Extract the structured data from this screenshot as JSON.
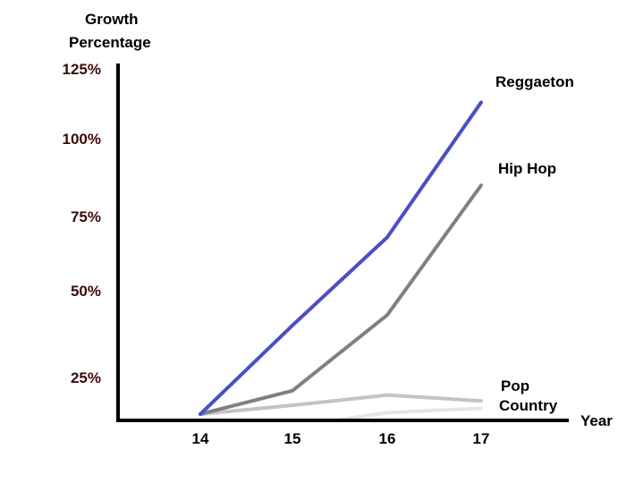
{
  "chart_data": {
    "type": "line",
    "ylabel_lines": [
      "Growth",
      "Percentage"
    ],
    "xlabel": "Year",
    "x": [
      "14",
      "15",
      "16",
      "17"
    ],
    "y_ticks": [
      "25%",
      "50%",
      "75%",
      "100%",
      "125%"
    ],
    "series": [
      {
        "name": "Reggaeton",
        "color": "#4a4fc4",
        "values": [
          0,
          40,
          68,
          113
        ]
      },
      {
        "name": "Hip Hop",
        "color": "#808080",
        "values": [
          0,
          16,
          43,
          85
        ]
      },
      {
        "name": "Pop",
        "color": "#c4c4c4",
        "values": [
          0,
          6,
          13,
          9
        ]
      },
      {
        "name": "Country",
        "color": "#e6e6e6",
        "values": [
          -7,
          null,
          1,
          4
        ]
      }
    ],
    "grid": false,
    "legend": "end-of-line labels"
  }
}
